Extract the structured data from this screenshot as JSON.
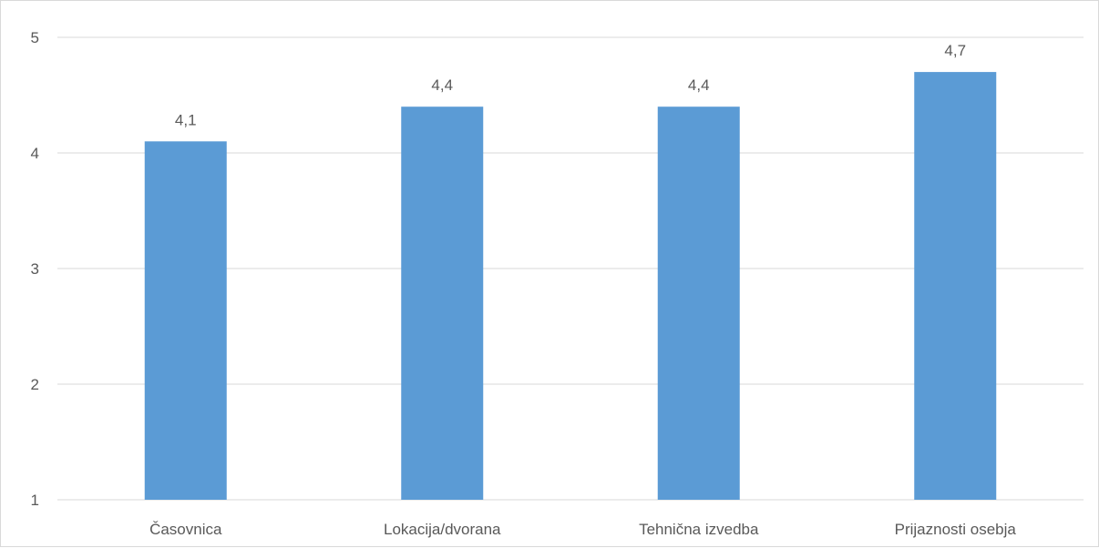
{
  "chart_data": {
    "type": "bar",
    "title": "",
    "xlabel": "",
    "ylabel": "",
    "categories": [
      "Časovnica",
      "Lokacija/dvorana",
      "Tehnična izvedba",
      "Prijaznosti osebja"
    ],
    "values": [
      4.1,
      4.4,
      4.4,
      4.7
    ],
    "value_labels": [
      "4,1",
      "4,4",
      "4,4",
      "4,7"
    ],
    "ylim": [
      1,
      5
    ],
    "yticks": [
      1,
      2,
      3,
      4,
      5
    ],
    "ytick_labels": [
      "1",
      "2",
      "3",
      "4",
      "5"
    ],
    "grid": true,
    "legend": "none",
    "colors": {
      "bar": "#5b9bd5",
      "grid": "#d9d9d9",
      "text": "#595959"
    }
  }
}
